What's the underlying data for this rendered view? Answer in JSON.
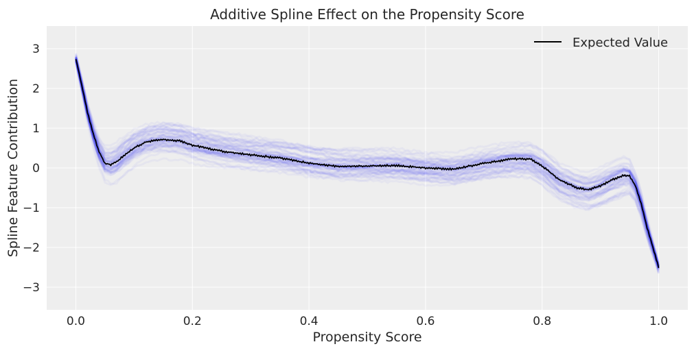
{
  "chart_data": {
    "type": "line",
    "title": "Additive Spline Effect on the Propensity Score",
    "xlabel": "Propensity Score",
    "ylabel": "Spline Feature Contribution",
    "xlim": [
      -0.05,
      1.05
    ],
    "ylim": [
      -3.57,
      3.57
    ],
    "xticks": [
      0.0,
      0.2,
      0.4,
      0.6,
      0.8,
      1.0
    ],
    "xtick_labels": [
      "0.0",
      "0.2",
      "0.4",
      "0.6",
      "0.8",
      "1.0"
    ],
    "yticks": [
      -3,
      -2,
      -1,
      0,
      1,
      2,
      3
    ],
    "ytick_labels": [
      "−3",
      "−2",
      "−1",
      "0",
      "1",
      "2",
      "3"
    ],
    "grid": true,
    "legend_position": "top-right",
    "background_color": "#eeeeee",
    "series": [
      {
        "name": "Expected Value",
        "color": "#000000",
        "x": [
          0,
          0.01,
          0.02,
          0.03,
          0.04,
          0.05,
          0.06,
          0.07,
          0.08,
          0.1,
          0.12,
          0.15,
          0.18,
          0.2,
          0.25,
          0.3,
          0.35,
          0.4,
          0.45,
          0.5,
          0.55,
          0.6,
          0.65,
          0.7,
          0.75,
          0.78,
          0.8,
          0.83,
          0.86,
          0.88,
          0.9,
          0.92,
          0.94,
          0.95,
          0.96,
          0.97,
          0.98,
          0.99,
          1.0
        ],
        "y": [
          2.75,
          2.1,
          1.4,
          0.85,
          0.4,
          0.12,
          0.08,
          0.15,
          0.28,
          0.5,
          0.65,
          0.72,
          0.68,
          0.57,
          0.42,
          0.33,
          0.25,
          0.12,
          0.04,
          0.05,
          0.06,
          0.0,
          -0.03,
          0.12,
          0.23,
          0.22,
          0.05,
          -0.3,
          -0.5,
          -0.55,
          -0.45,
          -0.3,
          -0.18,
          -0.2,
          -0.45,
          -0.9,
          -1.5,
          -2.0,
          -2.5
        ]
      }
    ],
    "posterior_samples_color": "#0000ff"
  }
}
